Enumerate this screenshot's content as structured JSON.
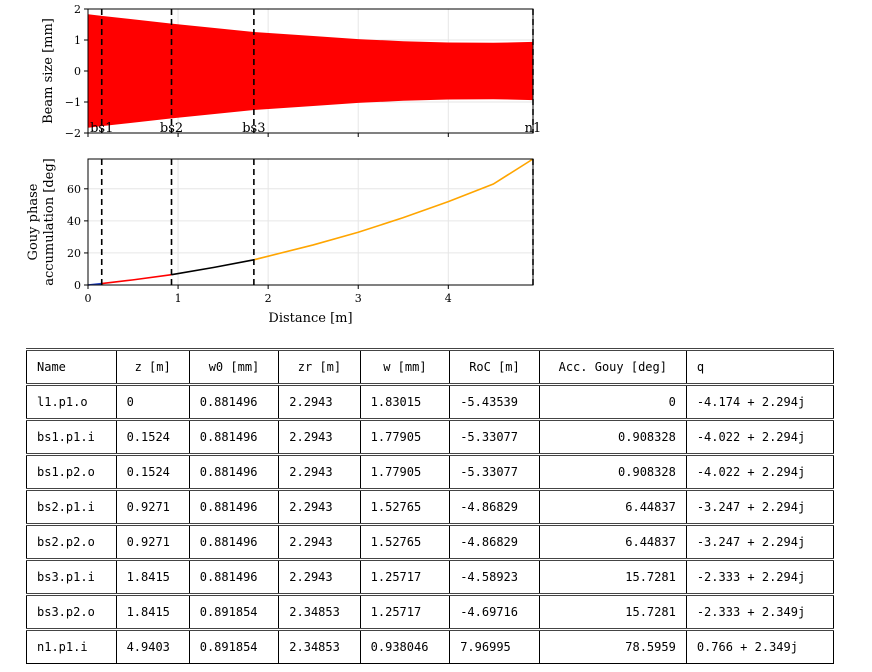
{
  "chart_data": [
    {
      "type": "area",
      "ylabel": "Beam size [mm]",
      "xlim": [
        0,
        4.9403
      ],
      "ylim": [
        -2,
        2
      ],
      "yticks": [
        -2,
        -1,
        0,
        1,
        2
      ],
      "ytick_labels": [
        "−2",
        "−1",
        "0",
        "1",
        "2"
      ],
      "color": "#ff0000",
      "grid": true,
      "series": [
        {
          "x": [
            0,
            0.1524,
            0.9271,
            1.8415,
            2.5,
            3.0,
            3.5,
            4.0,
            4.5,
            4.9403
          ],
          "values": [
            1.83015,
            1.77905,
            1.52765,
            1.25717,
            1.13,
            1.03,
            0.96,
            0.92,
            0.91,
            0.938046
          ]
        }
      ],
      "markers": [
        {
          "x": 0.1524,
          "label": "bs1"
        },
        {
          "x": 0.9271,
          "label": "bs2"
        },
        {
          "x": 1.8415,
          "label": "bs3"
        },
        {
          "x": 4.9403,
          "label": "n1"
        }
      ]
    },
    {
      "type": "line",
      "xlabel": "Distance [m]",
      "ylabel_lines": [
        "Gouy phase",
        "accumulation [deg]"
      ],
      "xlim": [
        0,
        4.9403
      ],
      "ylim": [
        0,
        78.5959
      ],
      "xticks": [
        0,
        1,
        2,
        3,
        4
      ],
      "xtick_labels": [
        "0",
        "1",
        "2",
        "3",
        "4"
      ],
      "yticks": [
        0,
        20,
        40,
        60
      ],
      "ytick_labels": [
        "0",
        "20",
        "40",
        "60"
      ],
      "grid": true,
      "series": [
        {
          "color": "#1f3fbf",
          "x": [
            0,
            0.1524
          ],
          "values": [
            0,
            0.908328
          ]
        },
        {
          "color": "#ff0000",
          "x": [
            0.1524,
            0.5,
            0.9271
          ],
          "values": [
            0.908328,
            3.2,
            6.44837
          ]
        },
        {
          "color": "#000000",
          "x": [
            0.9271,
            1.4,
            1.8415
          ],
          "values": [
            6.44837,
            11.0,
            15.7281
          ]
        },
        {
          "color": "#ffa500",
          "x": [
            1.8415,
            2.5,
            3.0,
            3.5,
            4.0,
            4.5,
            4.9403
          ],
          "values": [
            15.7281,
            25.0,
            32.9,
            42.0,
            52.0,
            63.0,
            78.5959
          ]
        }
      ],
      "markers": [
        {
          "x": 0.1524
        },
        {
          "x": 0.9271
        },
        {
          "x": 1.8415
        },
        {
          "x": 4.9403
        }
      ]
    }
  ],
  "table": {
    "headers": [
      "Name",
      "z [m]",
      "w0 [mm]",
      "zr [m]",
      "w [mm]",
      "RoC [m]",
      "Acc. Gouy [deg]",
      "q"
    ],
    "rows": [
      [
        "l1.p1.o",
        "0",
        "0.881496",
        "2.2943",
        "1.83015",
        "-5.43539",
        "0",
        "-4.174 + 2.294j"
      ],
      [
        "bs1.p1.i",
        "0.1524",
        "0.881496",
        "2.2943",
        "1.77905",
        "-5.33077",
        "0.908328",
        "-4.022 + 2.294j"
      ],
      [
        "bs1.p2.o",
        "0.1524",
        "0.881496",
        "2.2943",
        "1.77905",
        "-5.33077",
        "0.908328",
        "-4.022 + 2.294j"
      ],
      [
        "bs2.p1.i",
        "0.9271",
        "0.881496",
        "2.2943",
        "1.52765",
        "-4.86829",
        "6.44837",
        "-3.247 + 2.294j"
      ],
      [
        "bs2.p2.o",
        "0.9271",
        "0.881496",
        "2.2943",
        "1.52765",
        "-4.86829",
        "6.44837",
        "-3.247 + 2.294j"
      ],
      [
        "bs3.p1.i",
        "1.8415",
        "0.881496",
        "2.2943",
        "1.25717",
        "-4.58923",
        "15.7281",
        "-2.333 + 2.294j"
      ],
      [
        "bs3.p2.o",
        "1.8415",
        "0.891854",
        "2.34853",
        "1.25717",
        "-4.69716",
        "15.7281",
        "-2.333 + 2.349j"
      ],
      [
        "n1.p1.i",
        "4.9403",
        "0.891854",
        "2.34853",
        "0.938046",
        "7.96995",
        "78.5959",
        "0.766 + 2.349j"
      ]
    ]
  }
}
